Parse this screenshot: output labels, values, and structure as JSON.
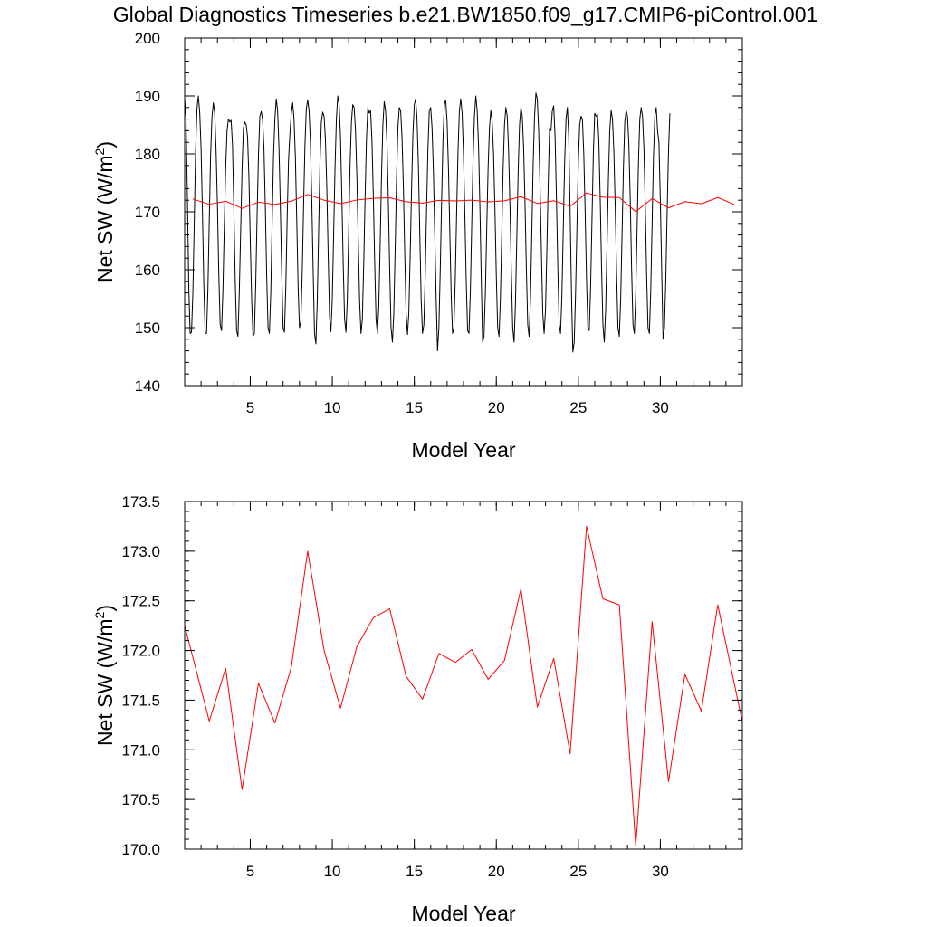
{
  "title": "Global Diagnostics Timeseries b.e21.BW1850.f09_g17.CMIP6-piControl.001",
  "colors": {
    "monthly_series": "#000000",
    "annual_series": "#ff0000",
    "frame": "#000000"
  },
  "chart_data": [
    {
      "type": "line",
      "xlabel": "Model Year",
      "ylabel_main": "Net SW (W/m",
      "ylabel_sup": "2",
      "ylabel_close": ")",
      "xlim": [
        1.0,
        35.0
      ],
      "ylim": [
        140,
        200
      ],
      "x_major_ticks": [
        5,
        10,
        15,
        20,
        25,
        30
      ],
      "x_minor_step": 1,
      "y_major_ticks": [
        140,
        150,
        160,
        170,
        180,
        190,
        200
      ],
      "y_minor_step": 2,
      "y_tick_labels": [
        "140",
        "150",
        "160",
        "170",
        "180",
        "190",
        "200"
      ],
      "grid": false,
      "series": [
        {
          "kind": "monthly",
          "color": "#000000",
          "x_start": 1.0,
          "x_step": 0.08333,
          "values": [
            189.5,
            186.0,
            172.5,
            157.0,
            149.0,
            149.2,
            156.0,
            168.0,
            180.5,
            187.8,
            190.0,
            187.2,
            181.0,
            170.0,
            157.5,
            149.0,
            149.0,
            156.5,
            168.5,
            180.0,
            186.5,
            188.8,
            187.0,
            180.5,
            171.0,
            159.0,
            150.5,
            149.5,
            156.5,
            167.5,
            177.5,
            184.0,
            186.0,
            185.5,
            185.8,
            181.5,
            170.5,
            158.0,
            149.5,
            148.5,
            156.5,
            167.0,
            177.5,
            184.5,
            185.5,
            185.0,
            183.0,
            176.0,
            165.0,
            155.0,
            148.5,
            149.0,
            157.5,
            169.5,
            180.0,
            186.5,
            187.3,
            186.0,
            181.0,
            171.0,
            159.0,
            150.0,
            149.0,
            156.0,
            168.0,
            179.5,
            186.0,
            189.5,
            187.5,
            181.0,
            171.0,
            159.5,
            150.0,
            149.2,
            157.0,
            169.0,
            179.0,
            183.5,
            187.0,
            188.8,
            186.0,
            179.5,
            168.5,
            157.0,
            150.0,
            151.0,
            159.5,
            171.0,
            181.5,
            187.8,
            189.3,
            187.5,
            182.0,
            172.0,
            160.0,
            149.0,
            147.2,
            154.5,
            166.5,
            178.5,
            185.5,
            187.2,
            186.5,
            182.5,
            174.0,
            162.5,
            152.0,
            149.3,
            155.0,
            166.0,
            177.5,
            186.0,
            190.0,
            188.5,
            183.0,
            172.5,
            161.0,
            151.5,
            149.2,
            155.0,
            166.5,
            178.0,
            185.5,
            188.5,
            188.0,
            184.0,
            176.0,
            165.0,
            154.5,
            149.0,
            151.5,
            161.0,
            172.5,
            182.5,
            188.0,
            187.0,
            187.5,
            182.5,
            173.0,
            161.5,
            151.5,
            149.0,
            153.5,
            164.0,
            176.0,
            185.0,
            189.0,
            187.5,
            182.0,
            172.0,
            160.0,
            150.0,
            147.5,
            152.5,
            163.5,
            175.5,
            184.5,
            188.0,
            187.5,
            183.0,
            174.5,
            163.0,
            152.5,
            148.8,
            152.5,
            162.5,
            174.0,
            183.5,
            188.5,
            189.5,
            186.0,
            178.0,
            166.5,
            155.0,
            149.0,
            150.5,
            159.0,
            170.5,
            181.0,
            187.5,
            188.0,
            184.5,
            177.0,
            166.0,
            155.0,
            146.0,
            150.0,
            160.0,
            172.0,
            182.5,
            188.5,
            189.3,
            185.5,
            177.5,
            166.5,
            155.5,
            149.0,
            150.0,
            158.5,
            170.0,
            180.5,
            187.5,
            189.5,
            187.0,
            180.0,
            169.5,
            158.0,
            149.5,
            149.0,
            156.0,
            167.5,
            179.0,
            186.5,
            190.0,
            187.5,
            181.5,
            171.0,
            158.5,
            147.5,
            148.5,
            156.0,
            167.0,
            177.5,
            184.5,
            187.5,
            185.5,
            180.0,
            170.5,
            159.0,
            150.0,
            148.5,
            155.0,
            166.0,
            177.5,
            185.0,
            188.0,
            186.5,
            180.5,
            171.0,
            159.5,
            150.0,
            147.5,
            154.0,
            165.5,
            177.0,
            185.0,
            188.0,
            186.5,
            181.0,
            171.5,
            160.0,
            150.5,
            148.5,
            155.0,
            166.5,
            178.5,
            186.5,
            190.5,
            189.5,
            184.0,
            174.5,
            163.0,
            152.5,
            149.0,
            153.0,
            163.5,
            175.0,
            184.5,
            184.0,
            187.5,
            188.3,
            183.0,
            172.5,
            160.5,
            150.5,
            149.0,
            155.5,
            167.0,
            178.5,
            186.0,
            188.0,
            183.0,
            170.0,
            156.0,
            145.8,
            147.5,
            156.0,
            167.5,
            178.5,
            185.0,
            186.5,
            186.0,
            180.0,
            170.0,
            158.5,
            150.0,
            149.5,
            157.0,
            168.5,
            180.0,
            187.0,
            186.5,
            186.8,
            182.5,
            172.5,
            160.5,
            150.5,
            147.5,
            153.0,
            164.0,
            175.5,
            184.0,
            187.5,
            186.0,
            180.5,
            171.0,
            159.5,
            150.0,
            148.5,
            155.0,
            166.0,
            177.5,
            185.5,
            187.5,
            186.5,
            181.5,
            172.0,
            160.0,
            150.5,
            149.0,
            155.5,
            167.0,
            178.5,
            186.0,
            188.0,
            186.5,
            181.0,
            171.0,
            159.0,
            150.0,
            149.0,
            156.5,
            168.0,
            179.5,
            186.5,
            188.0,
            184.0,
            182.0,
            172.0,
            160.0,
            148.0,
            150.0,
            158.0,
            170.0,
            180.5,
            187.0
          ]
        },
        {
          "kind": "annual",
          "color": "#ff0000",
          "x": [
            1.5,
            2.5,
            3.5,
            4.5,
            5.5,
            6.5,
            7.5,
            8.5,
            9.5,
            10.5,
            11.5,
            12.5,
            13.5,
            14.5,
            15.5,
            16.5,
            17.5,
            18.5,
            19.5,
            20.5,
            21.5,
            22.5,
            23.5,
            24.5,
            25.5,
            26.5,
            27.5,
            28.5,
            29.5,
            30.5,
            31.5,
            32.5,
            33.5,
            34.5
          ],
          "values": [
            172.2,
            171.3,
            171.82,
            170.6,
            171.67,
            171.27,
            171.83,
            173.0,
            172.0,
            171.42,
            172.04,
            172.33,
            172.42,
            171.74,
            171.51,
            171.97,
            171.88,
            172.01,
            171.71,
            171.9,
            172.62,
            171.43,
            171.92,
            170.96,
            173.25,
            172.52,
            172.46,
            170.03,
            172.29,
            170.68,
            171.76,
            171.39,
            172.46,
            171.28
          ]
        }
      ]
    },
    {
      "type": "line",
      "xlabel": "Model Year",
      "ylabel_main": "Net SW (W/m",
      "ylabel_sup": "2",
      "ylabel_close": ")",
      "xlim": [
        1.0,
        35.0
      ],
      "ylim": [
        170.0,
        173.5
      ],
      "x_major_ticks": [
        5,
        10,
        15,
        20,
        25,
        30
      ],
      "x_minor_step": 1,
      "y_major_ticks": [
        170.0,
        170.5,
        171.0,
        171.5,
        172.0,
        172.5,
        173.0,
        173.5
      ],
      "y_minor_step": 0.1,
      "y_tick_labels": [
        "170.0",
        "170.5",
        "171.0",
        "171.5",
        "172.0",
        "172.5",
        "173.0",
        "173.5"
      ],
      "grid": false,
      "series": [
        {
          "kind": "annual",
          "color": "#ff0000",
          "x": [
            1.0,
            2.5,
            3.5,
            4.5,
            5.5,
            6.5,
            7.5,
            8.5,
            9.5,
            10.5,
            11.5,
            12.5,
            13.5,
            14.5,
            15.5,
            16.5,
            17.5,
            18.5,
            19.5,
            20.5,
            21.5,
            22.5,
            23.5,
            24.5,
            25.5,
            26.5,
            27.5,
            28.5,
            29.5,
            30.5,
            31.5,
            32.5,
            33.5,
            35.0
          ],
          "values": [
            172.25,
            171.29,
            171.82,
            170.6,
            171.67,
            171.27,
            171.83,
            173.0,
            172.0,
            171.42,
            172.04,
            172.33,
            172.42,
            171.74,
            171.51,
            171.97,
            171.88,
            172.01,
            171.71,
            171.9,
            172.62,
            171.43,
            171.92,
            170.96,
            173.25,
            172.52,
            172.46,
            170.03,
            172.29,
            170.68,
            171.76,
            171.39,
            172.46,
            171.28
          ]
        }
      ]
    }
  ]
}
